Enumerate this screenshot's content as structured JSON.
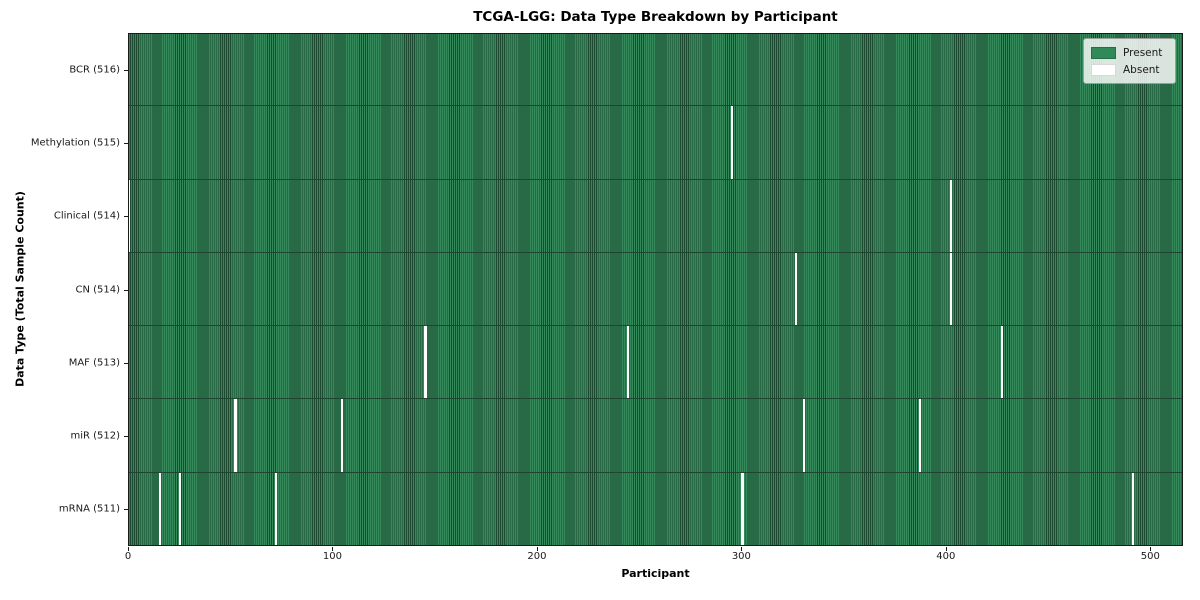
{
  "title": "TCGA-LGG: Data Type Breakdown by Participant",
  "colors": {
    "present": "#2f8a57",
    "present_cell_light": "#35895a",
    "present_cell_edge": "#1c4a30",
    "absent": "#ffffff",
    "row_separator": "#1d4530",
    "plot_border": "#1a1a1a",
    "legend_bg": "rgba(255,255,255,0.82)",
    "legend_border": "#9a9e9a"
  },
  "legend": {
    "position": "upper right",
    "items": [
      {
        "label": "Present",
        "color": "#2f8a57",
        "border": "#2a6b46"
      },
      {
        "label": "Absent",
        "color": "#ffffff",
        "border": "#d8d8d8"
      }
    ]
  },
  "chart_data": {
    "type": "heatmap",
    "title": "TCGA-LGG: Data Type Breakdown by Participant",
    "xlabel": "Participant",
    "ylabel": "Data Type (Total Sample Count)",
    "n_participants": 516,
    "xlim": [
      0,
      516
    ],
    "x_ticks": [
      0,
      100,
      200,
      300,
      400,
      500
    ],
    "grid": false,
    "legend_labels": [
      "Present",
      "Absent"
    ],
    "legend_position": "upper right",
    "value_encoding": {
      "present": 1,
      "absent": 0
    },
    "rows": [
      {
        "label": "BCR (516)",
        "data_type": "BCR",
        "present_count": 516,
        "absent_count": 0,
        "absent_participants": []
      },
      {
        "label": "Methylation (515)",
        "data_type": "Methylation",
        "present_count": 515,
        "absent_count": 1,
        "absent_participants": [
          295
        ]
      },
      {
        "label": "Clinical (514)",
        "data_type": "Clinical",
        "present_count": 514,
        "absent_count": 2,
        "absent_participants": [
          0,
          402
        ]
      },
      {
        "label": "CN (514)",
        "data_type": "CN",
        "present_count": 514,
        "absent_count": 2,
        "absent_participants": [
          326,
          402
        ]
      },
      {
        "label": "MAF (513)",
        "data_type": "MAF",
        "present_count": 513,
        "absent_count": 3,
        "absent_participants": [
          145,
          244,
          427
        ]
      },
      {
        "label": "miR (512)",
        "data_type": "miR",
        "present_count": 512,
        "absent_count": 4,
        "absent_participants": [
          52,
          104,
          330,
          387
        ]
      },
      {
        "label": "mRNA (511)",
        "data_type": "mRNA",
        "present_count": 511,
        "absent_count": 5,
        "absent_participants": [
          15,
          25,
          72,
          300,
          491
        ]
      }
    ]
  }
}
